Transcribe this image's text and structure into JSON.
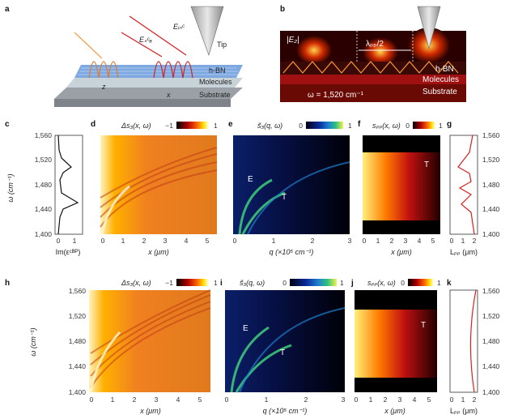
{
  "panels": {
    "a": "a",
    "b": "b",
    "c": "c",
    "d": "d",
    "e": "e",
    "f": "f",
    "g": "g",
    "h": "h",
    "i": "i",
    "j": "j",
    "k": "k"
  },
  "schematic_a": {
    "e_inc": "Eᵢₙᶜ",
    "e_sca": "Eₛᶜₐ",
    "tip": "Tip",
    "hbn": "h-BN",
    "molecules": "Molecules",
    "substrate": "Substrate",
    "axis_z": "z",
    "axis_x": "x"
  },
  "schematic_b": {
    "field": "|E₂|",
    "lambda": "λₚₚ/2",
    "hbn": "h-BN",
    "molecules": "Molecules",
    "substrate": "Substrate",
    "omega": "ω = 1,520 cm⁻¹"
  },
  "colorbars": {
    "d_title": "Δs₃(x, ω)",
    "d_min": "−1",
    "d_max": "1",
    "e_title": "s̃₃(q, ω)",
    "e_min": "0",
    "e_max": "1",
    "f_title": "sₚₚ(x, ω)",
    "f_min": "0",
    "f_max": "1",
    "h_title": "Δs₃(x, ω)",
    "h_min": "−1",
    "h_max": "1",
    "i_title": "s̃₃(q, ω)",
    "i_min": "0",
    "i_max": "1",
    "j_title": "sₚₚ(x, ω)",
    "j_min": "0",
    "j_max": "1"
  },
  "axes": {
    "omega_label": "ω (cm⁻¹)",
    "x_label": "x (μm)",
    "q_label": "q (×10⁵ cm⁻¹)",
    "im_label": "Im(εᶜᴮᴾ)",
    "lpp_label": "Lₚₚ (μm)",
    "omega_ticks": [
      "1,560",
      "1,520",
      "1,480",
      "1,440",
      "1,400"
    ],
    "x_ticks": [
      "0",
      "1",
      "2",
      "3",
      "4",
      "5"
    ],
    "q_ticks": [
      "0",
      "1",
      "2",
      "3"
    ],
    "im_ticks": [
      "0",
      "1"
    ],
    "lpp_ticks": [
      "0",
      "1",
      "2"
    ]
  },
  "annotations": {
    "E": "E",
    "T": "T"
  },
  "colors": {
    "accent_red": "#d62020"
  }
}
